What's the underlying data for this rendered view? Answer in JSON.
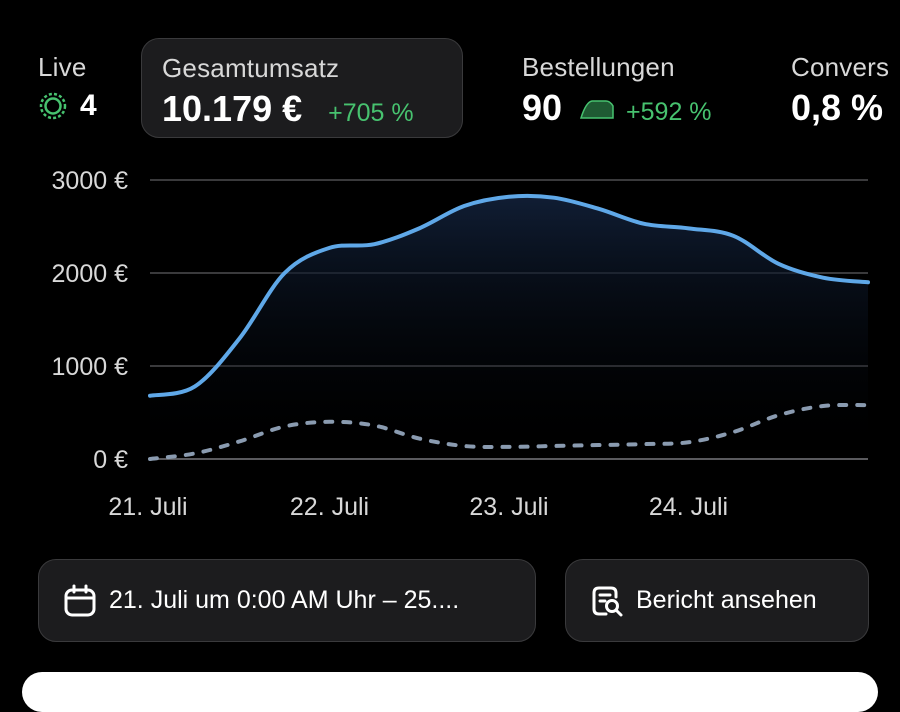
{
  "metrics": {
    "live": {
      "label": "Live",
      "value": "4",
      "icon": "live-indicator-icon",
      "color": "#47c26f"
    },
    "total_sales": {
      "label": "Gesamtumsatz",
      "value": "10.179 €",
      "delta": "+705 %"
    },
    "orders": {
      "label": "Bestellungen",
      "value": "90",
      "delta": "+592 %"
    },
    "conversion": {
      "label": "Convers",
      "value": "0,8 %"
    }
  },
  "chart_data": {
    "type": "line",
    "y_ticks": [
      "3000 €",
      "2000 €",
      "1000 €",
      "0 €"
    ],
    "x_ticks": [
      "21. Juli",
      "22. Juli",
      "23. Juli",
      "24. Juli"
    ],
    "ylim": [
      0,
      3000
    ],
    "grid": true,
    "x": [
      0,
      0.25,
      0.5,
      0.75,
      1.0,
      1.25,
      1.5,
      1.75,
      2.0,
      2.25,
      2.5,
      2.75,
      3.0,
      3.25,
      3.5,
      3.75,
      4.0
    ],
    "series": [
      {
        "color": "#5fa8e8",
        "style": "solid",
        "values": [
          680,
          780,
          1300,
          2000,
          2270,
          2310,
          2480,
          2720,
          2820,
          2810,
          2690,
          2530,
          2480,
          2400,
          2100,
          1950,
          1900
        ]
      },
      {
        "color": "#8a9bb0",
        "style": "dashed",
        "values": [
          0,
          60,
          190,
          350,
          400,
          360,
          220,
          140,
          130,
          140,
          150,
          160,
          180,
          290,
          470,
          570,
          580
        ]
      }
    ]
  },
  "actions": {
    "date_range": "21. Juli um 0:00 AM Uhr – 25....",
    "report": "Bericht ansehen"
  }
}
